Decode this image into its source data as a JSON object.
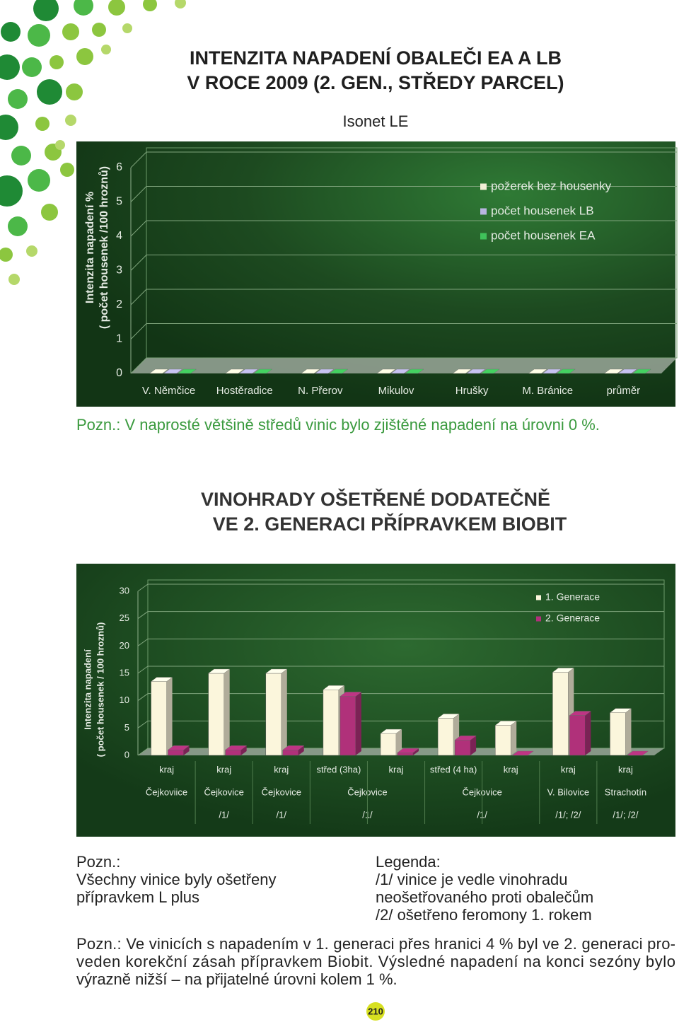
{
  "chart_data": [
    {
      "type": "bar",
      "title": [
        "INTENZITA NAPADENÍ OBALEČI EA A LB",
        "V ROCE 2009 (2. GEN., STŘEDY PARCEL)"
      ],
      "subtitle": "Isonet LE",
      "y_label": [
        "Intenzita napadení %",
        "( počet housenek /100 hroznů)"
      ],
      "categories": [
        "V. Němčice",
        "Hostěradice",
        "N. Přerov",
        "Mikulov",
        "Hrušky",
        "M. Bránice",
        "průměr"
      ],
      "series": [
        {
          "name": "požerek bez housenky",
          "color": "#f2efd6",
          "values": [
            0,
            0,
            0,
            0,
            0,
            0,
            0
          ]
        },
        {
          "name": "počet housenek LB",
          "color": "#b8b5e0",
          "values": [
            0,
            0,
            0,
            0,
            0,
            0,
            0
          ]
        },
        {
          "name": "počet housenek EA",
          "color": "#3fc25a",
          "values": [
            0,
            0,
            0,
            0,
            0,
            0,
            0
          ]
        }
      ],
      "ylim": [
        0,
        6
      ],
      "yticks": [
        0,
        1,
        2,
        3,
        4,
        5,
        6
      ],
      "grid": true,
      "legend": "upper right"
    },
    {
      "type": "bar",
      "title": [
        "VINOHRADY OŠETŘENÉ DODATEČNĚ",
        "VE 2. GENERACI PŘÍPRAVKEM BIOBIT"
      ],
      "y_label": [
        "Intenzita napadení",
        "( počet housenek / 100 hroznů)"
      ],
      "categories": [
        "kraj",
        "kraj",
        "kraj",
        "střed (3ha)",
        "kraj",
        "střed (4 ha)",
        "kraj",
        "kraj",
        "kraj"
      ],
      "locations": [
        "Čejkoviice",
        "Čejkovice",
        "Čejkovice",
        "Čejkovice",
        null,
        "Čejkovice",
        null,
        "V. Bilovice",
        "Strachotín"
      ],
      "location_notes": [
        null,
        "/1/",
        "/1/",
        "/1/",
        null,
        "/1/",
        null,
        "/1/; /2/",
        "/1/; /2/"
      ],
      "series": [
        {
          "name": "1. Generace",
          "color": "#fbf6dc",
          "values": [
            13.5,
            15,
            15,
            12,
            4,
            6.8,
            5.5,
            15.2,
            7.8
          ]
        },
        {
          "name": "2. Generace",
          "color": "#b0317a",
          "values": [
            1,
            1,
            1,
            10.8,
            0.5,
            2.8,
            0,
            7.3,
            0
          ]
        }
      ],
      "ylim": [
        0,
        30
      ],
      "yticks": [
        0,
        5,
        10,
        15,
        20,
        25,
        30
      ],
      "grid": true,
      "legend": "upper right"
    }
  ],
  "notes": {
    "first": "Pozn.: V naprosté většině středů vinic bylo zjištěné napadení na úrovni 0 %.",
    "pozn_left": [
      "Pozn.:",
      "Všechny vinice byly ošetřeny",
      "přípravkem L plus"
    ],
    "legenda": [
      "Legenda:",
      "/1/ vinice  je vedle vinohradu",
      "neošetřovaného proti obalečům",
      "/2/ ošetřeno feromony 1. rokem"
    ],
    "final": [
      "Pozn.: Ve vinicích s napadením v 1. generaci přes hranici 4 % byl ve 2. generaci pro-",
      "veden korekční zásah přípravkem Biobit. Výsledné napadení na konci sezóny bylo",
      "výrazně nižší – na přijatelné úrovni kolem 1 %."
    ]
  },
  "page_number": "210"
}
